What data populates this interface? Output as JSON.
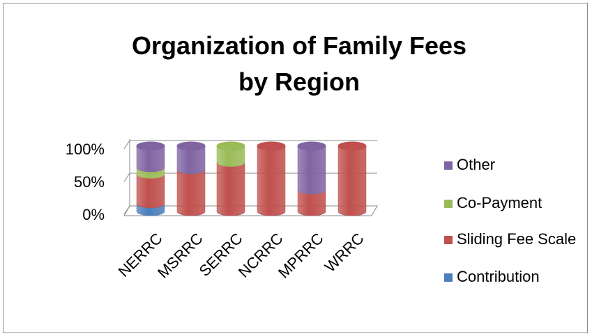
{
  "chart_data": {
    "type": "bar3d_stacked_percent",
    "title": "Organization of Family Fees by Region",
    "categories": [
      "NERRC",
      "MSRRC",
      "SERRC",
      "NCRRC",
      "MPRRC",
      "WRRC"
    ],
    "series": [
      {
        "name": "Contribution",
        "color": "#4a7ebb",
        "values": [
          12,
          0,
          0,
          0,
          0,
          0
        ]
      },
      {
        "name": "Sliding Fee Scale",
        "color": "#c0504d",
        "values": [
          45,
          64,
          75,
          100,
          33,
          100
        ]
      },
      {
        "name": "Co-Payment",
        "color": "#9bbb59",
        "values": [
          10,
          0,
          25,
          0,
          0,
          0
        ]
      },
      {
        "name": "Other",
        "color": "#8064a2",
        "values": [
          33,
          36,
          0,
          0,
          67,
          0
        ]
      }
    ],
    "ylim": [
      0,
      100
    ],
    "yticks": [
      {
        "value": 0,
        "label": "0%"
      },
      {
        "value": 50,
        "label": "50%"
      },
      {
        "value": 100,
        "label": "100%"
      }
    ],
    "grid": true,
    "legend": "right"
  }
}
